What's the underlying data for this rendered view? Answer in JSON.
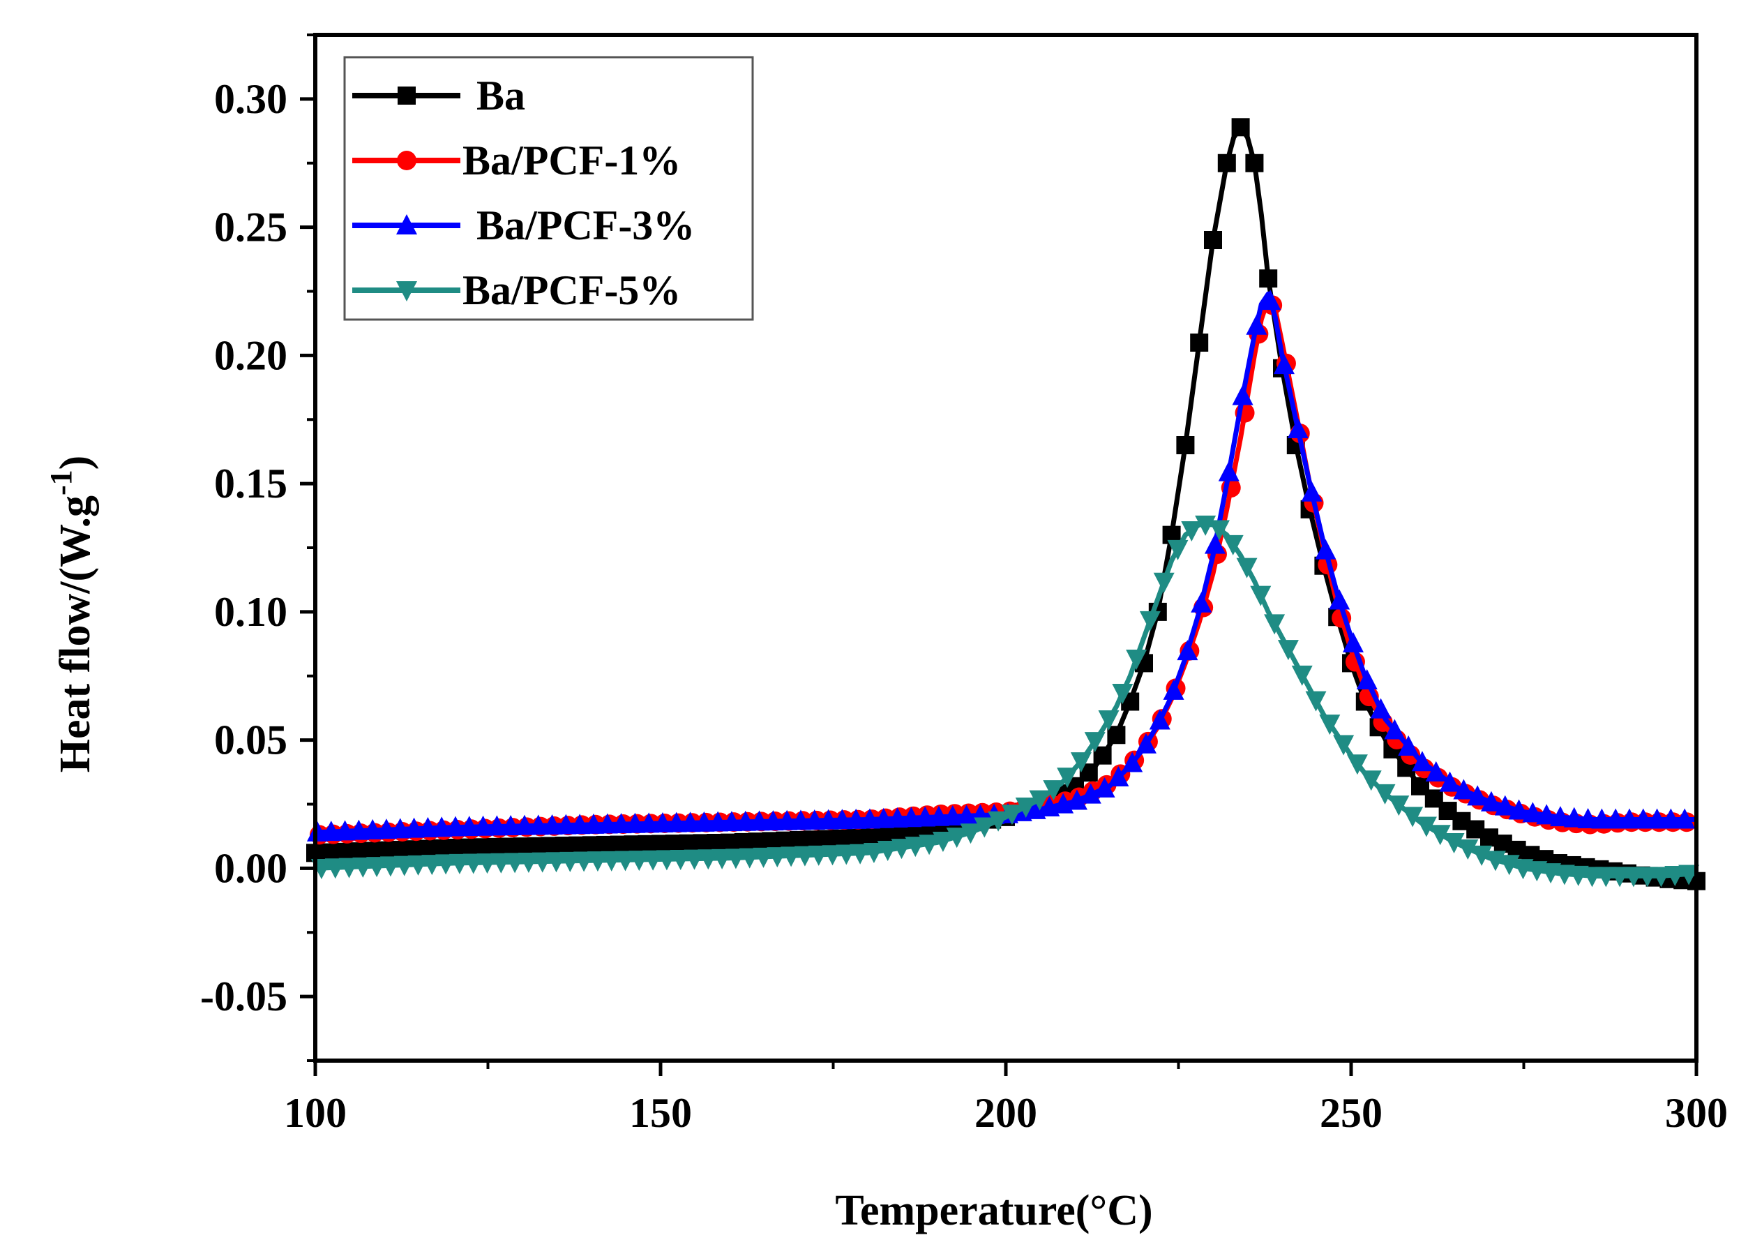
{
  "chart_data": {
    "type": "line",
    "title": "",
    "xlabel": "Temperature(°C)",
    "ylabel_main": "Heat flow/(W.g",
    "ylabel_sup": "-1",
    "ylabel_close": ")",
    "xlim": [
      100,
      300
    ],
    "ylim": [
      -0.075,
      0.325
    ],
    "xticks": [
      100,
      150,
      200,
      250,
      300
    ],
    "xtick_labels": [
      "100",
      "150",
      "200",
      "250",
      "300"
    ],
    "yticks": [
      -0.05,
      0,
      0.05,
      0.1,
      0.15,
      0.2,
      0.25,
      0.3
    ],
    "ytick_labels": [
      "-0.05",
      "0.00",
      "0.05",
      "0.10",
      "0.15",
      "0.20",
      "0.25",
      "0.30"
    ],
    "grid": false,
    "legend_position": "top-left",
    "series": [
      {
        "name": "Ba",
        "color": "#000000",
        "marker": "square",
        "points": [
          [
            100,
            0.006
          ],
          [
            120,
            0.008
          ],
          [
            140,
            0.009
          ],
          [
            160,
            0.01
          ],
          [
            180,
            0.012
          ],
          [
            190,
            0.015
          ],
          [
            200,
            0.02
          ],
          [
            205,
            0.025
          ],
          [
            210,
            0.032
          ],
          [
            213,
            0.04
          ],
          [
            216,
            0.052
          ],
          [
            218,
            0.065
          ],
          [
            220,
            0.08
          ],
          [
            222,
            0.1
          ],
          [
            224,
            0.13
          ],
          [
            226,
            0.165
          ],
          [
            228,
            0.205
          ],
          [
            230,
            0.245
          ],
          [
            232,
            0.275
          ],
          [
            233,
            0.285
          ],
          [
            234,
            0.289
          ],
          [
            235,
            0.285
          ],
          [
            236,
            0.275
          ],
          [
            237,
            0.255
          ],
          [
            238,
            0.23
          ],
          [
            240,
            0.195
          ],
          [
            242,
            0.165
          ],
          [
            244,
            0.14
          ],
          [
            246,
            0.118
          ],
          [
            248,
            0.098
          ],
          [
            250,
            0.08
          ],
          [
            252,
            0.065
          ],
          [
            255,
            0.05
          ],
          [
            260,
            0.032
          ],
          [
            265,
            0.02
          ],
          [
            270,
            0.012
          ],
          [
            275,
            0.006
          ],
          [
            280,
            0.002
          ],
          [
            285,
            0.0
          ],
          [
            290,
            -0.002
          ],
          [
            295,
            -0.004
          ],
          [
            300,
            -0.005
          ]
        ]
      },
      {
        "name": "Ba/PCF-1%",
        "color": "#ff0000",
        "marker": "circle",
        "points": [
          [
            100,
            0.013
          ],
          [
            120,
            0.015
          ],
          [
            140,
            0.017
          ],
          [
            160,
            0.018
          ],
          [
            180,
            0.019
          ],
          [
            190,
            0.021
          ],
          [
            200,
            0.022
          ],
          [
            205,
            0.024
          ],
          [
            210,
            0.027
          ],
          [
            215,
            0.033
          ],
          [
            218,
            0.04
          ],
          [
            220,
            0.047
          ],
          [
            222,
            0.055
          ],
          [
            224,
            0.066
          ],
          [
            226,
            0.08
          ],
          [
            228,
            0.096
          ],
          [
            230,
            0.115
          ],
          [
            232,
            0.14
          ],
          [
            234,
            0.168
          ],
          [
            236,
            0.2
          ],
          [
            237,
            0.214
          ],
          [
            238,
            0.222
          ],
          [
            239,
            0.218
          ],
          [
            240,
            0.205
          ],
          [
            242,
            0.178
          ],
          [
            244,
            0.15
          ],
          [
            246,
            0.125
          ],
          [
            248,
            0.103
          ],
          [
            250,
            0.085
          ],
          [
            252,
            0.07
          ],
          [
            255,
            0.055
          ],
          [
            260,
            0.04
          ],
          [
            265,
            0.031
          ],
          [
            270,
            0.025
          ],
          [
            275,
            0.021
          ],
          [
            280,
            0.018
          ],
          [
            285,
            0.017
          ],
          [
            290,
            0.018
          ],
          [
            295,
            0.018
          ],
          [
            300,
            0.018
          ]
        ]
      },
      {
        "name": "Ba/PCF-3%",
        "color": "#0000ff",
        "marker": "triangle-up",
        "points": [
          [
            100,
            0.014
          ],
          [
            120,
            0.016
          ],
          [
            140,
            0.017
          ],
          [
            160,
            0.018
          ],
          [
            180,
            0.019
          ],
          [
            190,
            0.02
          ],
          [
            200,
            0.021
          ],
          [
            205,
            0.023
          ],
          [
            210,
            0.026
          ],
          [
            215,
            0.032
          ],
          [
            218,
            0.04
          ],
          [
            220,
            0.047
          ],
          [
            222,
            0.056
          ],
          [
            224,
            0.067
          ],
          [
            226,
            0.082
          ],
          [
            228,
            0.1
          ],
          [
            230,
            0.122
          ],
          [
            232,
            0.15
          ],
          [
            234,
            0.18
          ],
          [
            236,
            0.208
          ],
          [
            237,
            0.22
          ],
          [
            238,
            0.224
          ],
          [
            239,
            0.215
          ],
          [
            240,
            0.2
          ],
          [
            242,
            0.175
          ],
          [
            244,
            0.15
          ],
          [
            246,
            0.127
          ],
          [
            248,
            0.107
          ],
          [
            250,
            0.09
          ],
          [
            252,
            0.075
          ],
          [
            255,
            0.058
          ],
          [
            260,
            0.042
          ],
          [
            265,
            0.032
          ],
          [
            270,
            0.026
          ],
          [
            275,
            0.022
          ],
          [
            280,
            0.02
          ],
          [
            285,
            0.019
          ],
          [
            290,
            0.019
          ],
          [
            295,
            0.019
          ],
          [
            300,
            0.019
          ]
        ]
      },
      {
        "name": "Ba/PCF-5%",
        "color": "#1f8c84",
        "marker": "triangle-down",
        "points": [
          [
            100,
            0.0
          ],
          [
            120,
            0.002
          ],
          [
            140,
            0.003
          ],
          [
            160,
            0.004
          ],
          [
            170,
            0.005
          ],
          [
            180,
            0.006
          ],
          [
            190,
            0.01
          ],
          [
            195,
            0.014
          ],
          [
            200,
            0.02
          ],
          [
            205,
            0.027
          ],
          [
            208,
            0.033
          ],
          [
            211,
            0.042
          ],
          [
            214,
            0.054
          ],
          [
            216,
            0.063
          ],
          [
            218,
            0.075
          ],
          [
            220,
            0.09
          ],
          [
            222,
            0.105
          ],
          [
            224,
            0.12
          ],
          [
            226,
            0.13
          ],
          [
            228,
            0.134
          ],
          [
            230,
            0.134
          ],
          [
            232,
            0.13
          ],
          [
            234,
            0.122
          ],
          [
            236,
            0.112
          ],
          [
            238,
            0.1
          ],
          [
            240,
            0.09
          ],
          [
            242,
            0.08
          ],
          [
            244,
            0.07
          ],
          [
            246,
            0.06
          ],
          [
            248,
            0.052
          ],
          [
            250,
            0.044
          ],
          [
            252,
            0.037
          ],
          [
            255,
            0.029
          ],
          [
            260,
            0.018
          ],
          [
            265,
            0.01
          ],
          [
            270,
            0.004
          ],
          [
            275,
            0.0
          ],
          [
            280,
            -0.002
          ],
          [
            285,
            -0.003
          ],
          [
            290,
            -0.003
          ],
          [
            295,
            -0.003
          ],
          [
            300,
            -0.002
          ]
        ]
      }
    ]
  }
}
